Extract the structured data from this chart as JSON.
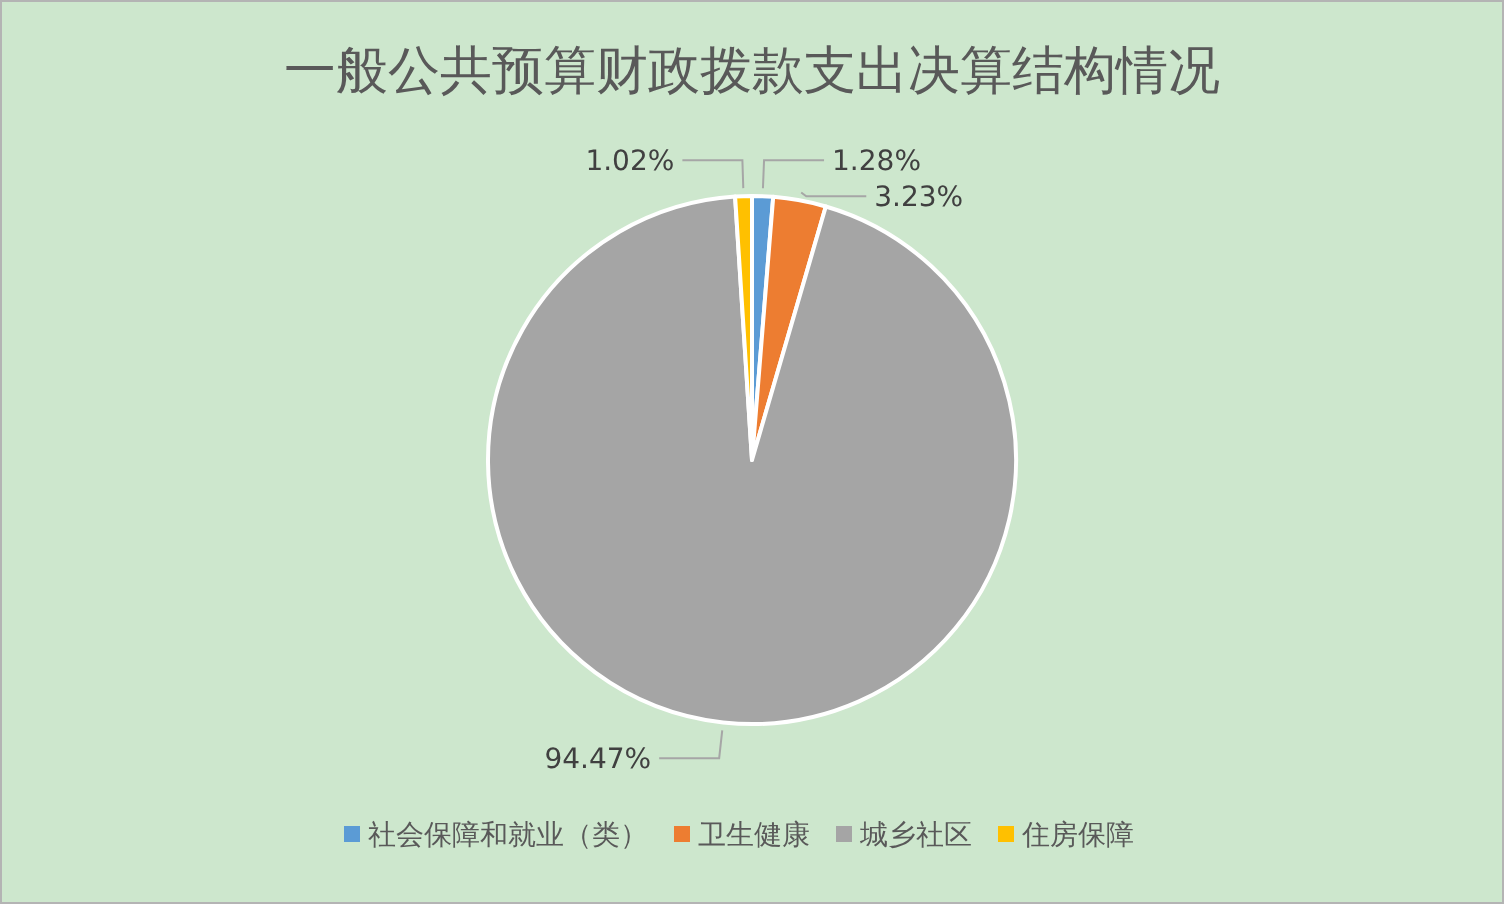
{
  "chart_data": {
    "type": "pie",
    "title": "一般公共预算财政拨款支出决算结构情况",
    "categories": [
      "社会保障和就业（类）",
      "卫生健康",
      "城乡社区",
      "住房保障"
    ],
    "values": [
      1.28,
      3.23,
      94.47,
      1.02
    ],
    "colors": [
      "#5b9bd5",
      "#ed7d31",
      "#a5a5a5",
      "#ffc000"
    ],
    "value_labels": [
      "1.28%",
      "3.23%",
      "94.47%",
      "1.02%"
    ],
    "legend": "bottom"
  }
}
